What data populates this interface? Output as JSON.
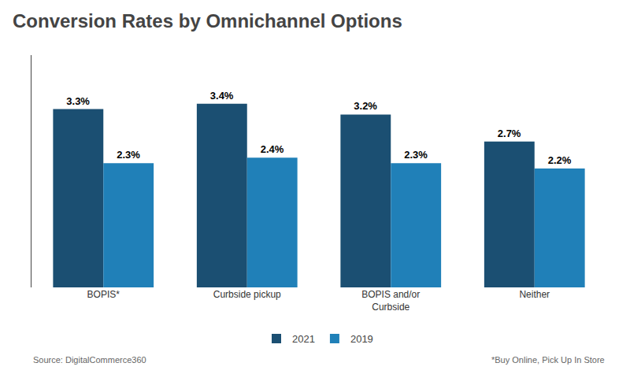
{
  "chart_data": {
    "type": "bar",
    "title": "Conversion Rates by Omnichannel Options",
    "categories": [
      "BOPIS*",
      "Curbside pickup",
      "BOPIS and/or\nCurbside",
      "Neither"
    ],
    "series": [
      {
        "name": "2021",
        "color": "#1b4f72",
        "values": [
          3.3,
          3.4,
          3.2,
          2.7
        ],
        "value_labels": [
          "3.3%",
          "3.4%",
          "3.2%",
          "2.7%"
        ]
      },
      {
        "name": "2019",
        "color": "#2080b8",
        "values": [
          2.3,
          2.4,
          2.3,
          2.2
        ],
        "value_labels": [
          "2.3%",
          "2.4%",
          "2.3%",
          "2.2%"
        ]
      }
    ],
    "ylim": [
      0,
      4.3
    ],
    "tick_labels": "x",
    "data_labels": true,
    "grid": false,
    "legend": "bottom",
    "annotations": [
      "Source: DigitalCommerce360",
      "*Buy Online, Pick Up In Store"
    ]
  }
}
